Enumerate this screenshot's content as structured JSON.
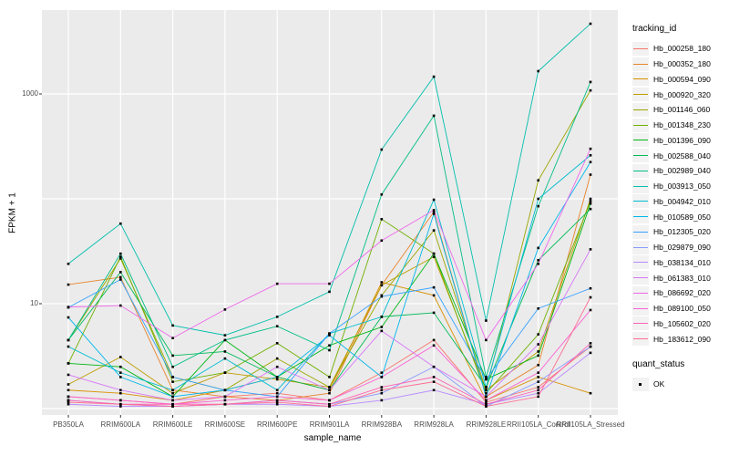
{
  "figure": {
    "y_axis": {
      "label": "FPKM + 1",
      "tick_labels": [
        "1000",
        "10"
      ]
    },
    "x_axis": {
      "label": "sample_name"
    },
    "legend": {
      "title": "tracking_id"
    },
    "quant_legend": {
      "title": "quant_status",
      "items": [
        "OK"
      ]
    }
  },
  "colors": {
    "panel_bg": "#EBEBEB",
    "gridline": "#FFFFFF",
    "tick_text": "#4D4D4D",
    "axis_text": "#000000",
    "point": "#000000",
    "legend_key_bg": "#F2F2F2"
  },
  "chart_data": {
    "type": "line",
    "title": "",
    "xlabel": "sample_name",
    "ylabel": "FPKM + 1",
    "y_scale": "log10",
    "ylim": [
      0.87,
      6300
    ],
    "y_gridlines": [
      1,
      10,
      100,
      1000
    ],
    "y_labeled_breaks": [
      10,
      1000
    ],
    "grid": "major-white-on-gray",
    "legend_position": "right",
    "point_marker": "black-square (quant_status = OK)",
    "categories": [
      "PB350LA",
      "RRIM600LA",
      "RRIM600LE",
      "RRIM600SE",
      "RRIM600PE",
      "RRIM901LA",
      "RRIM928BA",
      "RRIM928LA",
      "RRIM928LE",
      "RRII105LA_Control",
      "RRII105LA_Stressed"
    ],
    "series": [
      {
        "name": "Hb_000258_180",
        "color": "#F8766D",
        "values": [
          1.3,
          1.2,
          1.1,
          1.3,
          1.4,
          1.2,
          2.2,
          4.5,
          1.15,
          1.6,
          3.9
        ]
      },
      {
        "name": "Hb_000352_180",
        "color": "#E8842C",
        "values": [
          15.2,
          17.9,
          1.5,
          1.3,
          1.2,
          1.4,
          15,
          75,
          1.3,
          2.6,
          170
        ]
      },
      {
        "name": "Hb_000594_090",
        "color": "#D89000",
        "values": [
          1.5,
          1.4,
          1.2,
          1.5,
          2.0,
          1.5,
          16,
          12,
          1.2,
          2.0,
          1.4
        ]
      },
      {
        "name": "Hb_000920_320",
        "color": "#BE9C00",
        "values": [
          1.7,
          3.1,
          1.4,
          2.2,
          1.9,
          1.6,
          15,
          28,
          1.5,
          3.5,
          100
        ]
      },
      {
        "name": "Hb_001146_060",
        "color": "#9CA700",
        "values": [
          4.5,
          27,
          2.0,
          1.5,
          3.0,
          1.6,
          12,
          50,
          1.5,
          150,
          1080
        ]
      },
      {
        "name": "Hb_001348_230",
        "color": "#6FB000",
        "values": [
          2.7,
          28,
          1.8,
          2.2,
          4.2,
          2.0,
          64,
          30,
          1.4,
          5.1,
          95
        ]
      },
      {
        "name": "Hb_001396_090",
        "color": "#00B713",
        "values": [
          2.7,
          2.5,
          1.3,
          4.5,
          2.0,
          4.0,
          6.0,
          30,
          1.9,
          3.2,
          90
        ]
      },
      {
        "name": "Hb_002588_040",
        "color": "#00BB57",
        "values": [
          4.5,
          20,
          3.2,
          3.5,
          2.0,
          1.5,
          7.5,
          8.2,
          1.6,
          26,
          80
        ]
      },
      {
        "name": "Hb_002989_040",
        "color": "#00BE85",
        "values": [
          4.5,
          30,
          2.5,
          4.5,
          6.1,
          3.6,
          110,
          620,
          2.0,
          85,
          1300
        ]
      },
      {
        "name": "Hb_003913_050",
        "color": "#00BFAC",
        "values": [
          24,
          58,
          6.2,
          5.0,
          7.5,
          13,
          295,
          1460,
          6.9,
          1650,
          4670
        ]
      },
      {
        "name": "Hb_004942_010",
        "color": "#00BDCF",
        "values": [
          3.9,
          2.2,
          1.5,
          3.0,
          1.5,
          5.2,
          7.5,
          98,
          1.6,
          100,
          260
        ]
      },
      {
        "name": "Hb_010589_050",
        "color": "#00B7EB",
        "values": [
          7.4,
          2.0,
          1.3,
          1.5,
          2.0,
          5.0,
          2.0,
          72,
          1.3,
          34,
          224
        ]
      },
      {
        "name": "Hb_012305_020",
        "color": "#35A2FF",
        "values": [
          9.2,
          17,
          2.0,
          1.5,
          1.3,
          5.2,
          11.7,
          14.3,
          1.9,
          9.0,
          14
        ]
      },
      {
        "name": "Hb_029879_090",
        "color": "#899AFF",
        "values": [
          1.2,
          1.1,
          1.05,
          1.1,
          1.2,
          1.1,
          1.4,
          2.5,
          1.05,
          1.8,
          3.9
        ]
      },
      {
        "name": "Hb_038134_010",
        "color": "#B88AFF",
        "values": [
          1.1,
          1.05,
          1.05,
          1.1,
          1.1,
          1.05,
          1.2,
          1.5,
          1.1,
          1.4,
          3.4
        ]
      },
      {
        "name": "Hb_061383_010",
        "color": "#D877F9",
        "values": [
          2.1,
          1.5,
          1.2,
          1.3,
          2.5,
          1.5,
          5.5,
          2.5,
          1.3,
          4.1,
          33
        ]
      },
      {
        "name": "Hb_086692_020",
        "color": "#EE68EA",
        "values": [
          9.3,
          9.6,
          4.7,
          8.8,
          15.5,
          15.5,
          40,
          78,
          4.5,
          24,
          300
        ]
      },
      {
        "name": "Hb_089100_050",
        "color": "#FB61D3",
        "values": [
          1.3,
          1.2,
          1.1,
          1.2,
          1.3,
          1.2,
          2.0,
          4.0,
          1.2,
          2.2,
          8.7
        ]
      },
      {
        "name": "Hb_105602_020",
        "color": "#FF62B4",
        "values": [
          1.2,
          1.1,
          1.1,
          1.1,
          1.2,
          1.1,
          1.6,
          2.0,
          1.1,
          1.5,
          4.2
        ]
      },
      {
        "name": "Hb_183612_090",
        "color": "#FF6B92",
        "values": [
          1.15,
          1.1,
          1.05,
          1.1,
          1.15,
          1.05,
          1.5,
          1.8,
          1.05,
          1.3,
          11.5
        ]
      }
    ]
  }
}
